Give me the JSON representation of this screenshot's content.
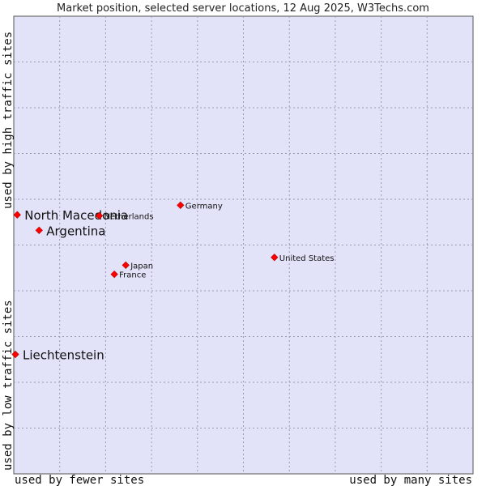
{
  "chart_data": {
    "type": "scatter",
    "title": "Market position, selected server locations, 12 Aug 2025, W3Techs.com",
    "xlabel_low": "used by fewer sites",
    "xlabel_high": "used by many sites",
    "ylabel_low": "used by low traffic sites",
    "ylabel_high": "used by high traffic sites",
    "xlim": [
      0,
      100
    ],
    "ylim": [
      0,
      100
    ],
    "grid": true,
    "marker_color": "#ff0000",
    "plot_background": "#e2e2f8",
    "points": [
      {
        "label": "North Macedonia",
        "x": 0.4,
        "y": 56.6,
        "emphasis": true
      },
      {
        "label": "Argentina",
        "x": 5.2,
        "y": 53.2,
        "emphasis": true
      },
      {
        "label": "Liechtenstein",
        "x": 0.0,
        "y": 26.1,
        "emphasis": true
      },
      {
        "label": "Netherlands",
        "x": 18.4,
        "y": 56.4,
        "emphasis": false
      },
      {
        "label": "Germany",
        "x": 36.2,
        "y": 58.7,
        "emphasis": false
      },
      {
        "label": "United States",
        "x": 56.8,
        "y": 47.3,
        "emphasis": false
      },
      {
        "label": "Japan",
        "x": 24.2,
        "y": 45.6,
        "emphasis": false
      },
      {
        "label": "France",
        "x": 21.7,
        "y": 43.6,
        "emphasis": false
      }
    ]
  }
}
